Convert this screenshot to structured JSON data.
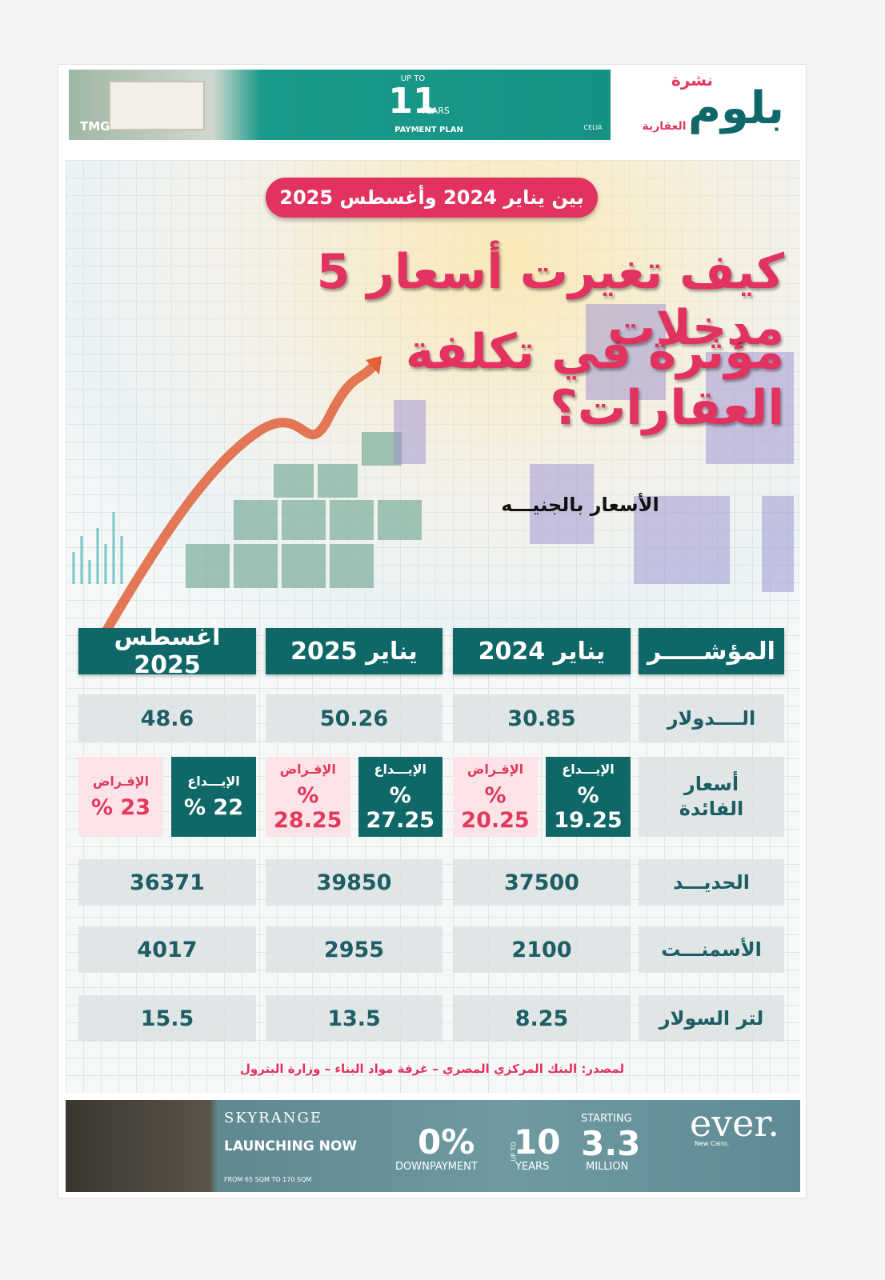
{
  "logo": {
    "tag": "نشرة",
    "brand": "بلوم",
    "sub": "العقارية"
  },
  "top_ad": {
    "brand": "TMG",
    "up_to": "UP TO",
    "number": "11",
    "unit": "YEARS",
    "plan": "PAYMENT PLAN",
    "project": "CELIA"
  },
  "period": "بين يناير 2024 وأغسطس 2025",
  "title": [
    "كيف تغيرت أسعار 5 مدخلات",
    "مؤثرة في تكلفة العقارات؟"
  ],
  "unit_note": "الأسعار بالجنيـــه",
  "table": {
    "headers": [
      "المؤشـــــر",
      "يناير 2024",
      "يناير 2025",
      "أغسطس 2025"
    ],
    "dollar": [
      "الــــدولار",
      "30.85",
      "50.26",
      "48.6"
    ],
    "interest": {
      "label": "أسعار الفائدة",
      "deposit_label": "الإيـــداع",
      "lending_label": "الإقـراض",
      "values": [
        [
          "% 19.25",
          "% 20.25"
        ],
        [
          "% 27.25",
          "% 28.25"
        ],
        [
          "% 22",
          "% 23"
        ]
      ]
    },
    "rows": [
      [
        "الحديـــد",
        "37500",
        "39850",
        "36371"
      ],
      [
        "الأسمنـــت",
        "2100",
        "2955",
        "4017"
      ],
      [
        "لتر السولار",
        "8.25",
        "13.5",
        "15.5"
      ]
    ]
  },
  "source": "لمصدر: البنك المركزي المصري – غرفة مواد البناء – وزارة البترول",
  "bottom_ad": {
    "project": "SKYRANGE",
    "launch": "LAUNCHING NOW",
    "area": "FROM 65 SQM TO 170 SQM",
    "down": "0%",
    "down_label": "DOWNPAYMENT",
    "up_to": "UP TO",
    "years": "10",
    "years_label": "YEARS",
    "starting": "STARTING",
    "price": "3.3",
    "price_label": "MILLION",
    "brand": "ever.",
    "location": "New Cairo."
  }
}
